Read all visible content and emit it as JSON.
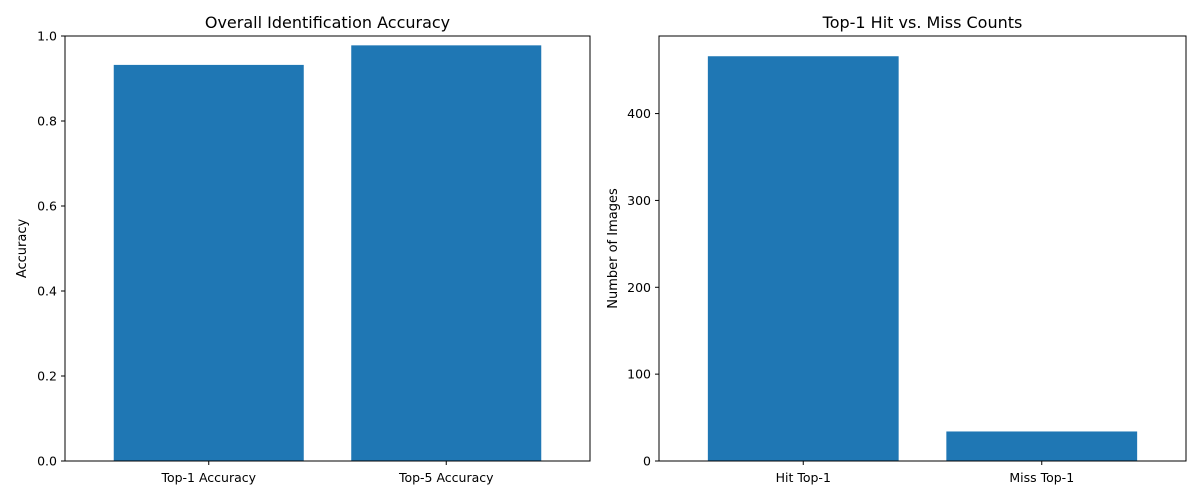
{
  "colors": {
    "bar": "#1f77b4",
    "axis": "#000000",
    "background": "#ffffff"
  },
  "chart_data": [
    {
      "type": "bar",
      "title": "Overall Identification Accuracy",
      "xlabel": "",
      "ylabel": "Accuracy",
      "categories": [
        "Top-1 Accuracy",
        "Top-5 Accuracy"
      ],
      "values": [
        0.932,
        0.978
      ],
      "ylim": [
        0,
        1.0
      ],
      "yticks": [
        "0.0",
        "0.2",
        "0.4",
        "0.6",
        "0.8",
        "1.0"
      ],
      "ytick_values": [
        0,
        0.2,
        0.4,
        0.6,
        0.8,
        1.0
      ],
      "grid": false,
      "legend": "none"
    },
    {
      "type": "bar",
      "title": "Top-1 Hit vs. Miss Counts",
      "xlabel": "",
      "ylabel": "Number of Images",
      "categories": [
        "Hit Top-1",
        "Miss Top-1"
      ],
      "values": [
        466,
        34
      ],
      "ylim": [
        0,
        489.3
      ],
      "yticks": [
        "0",
        "100",
        "200",
        "300",
        "400"
      ],
      "ytick_values": [
        0,
        100,
        200,
        300,
        400
      ],
      "grid": false,
      "legend": "none"
    }
  ]
}
